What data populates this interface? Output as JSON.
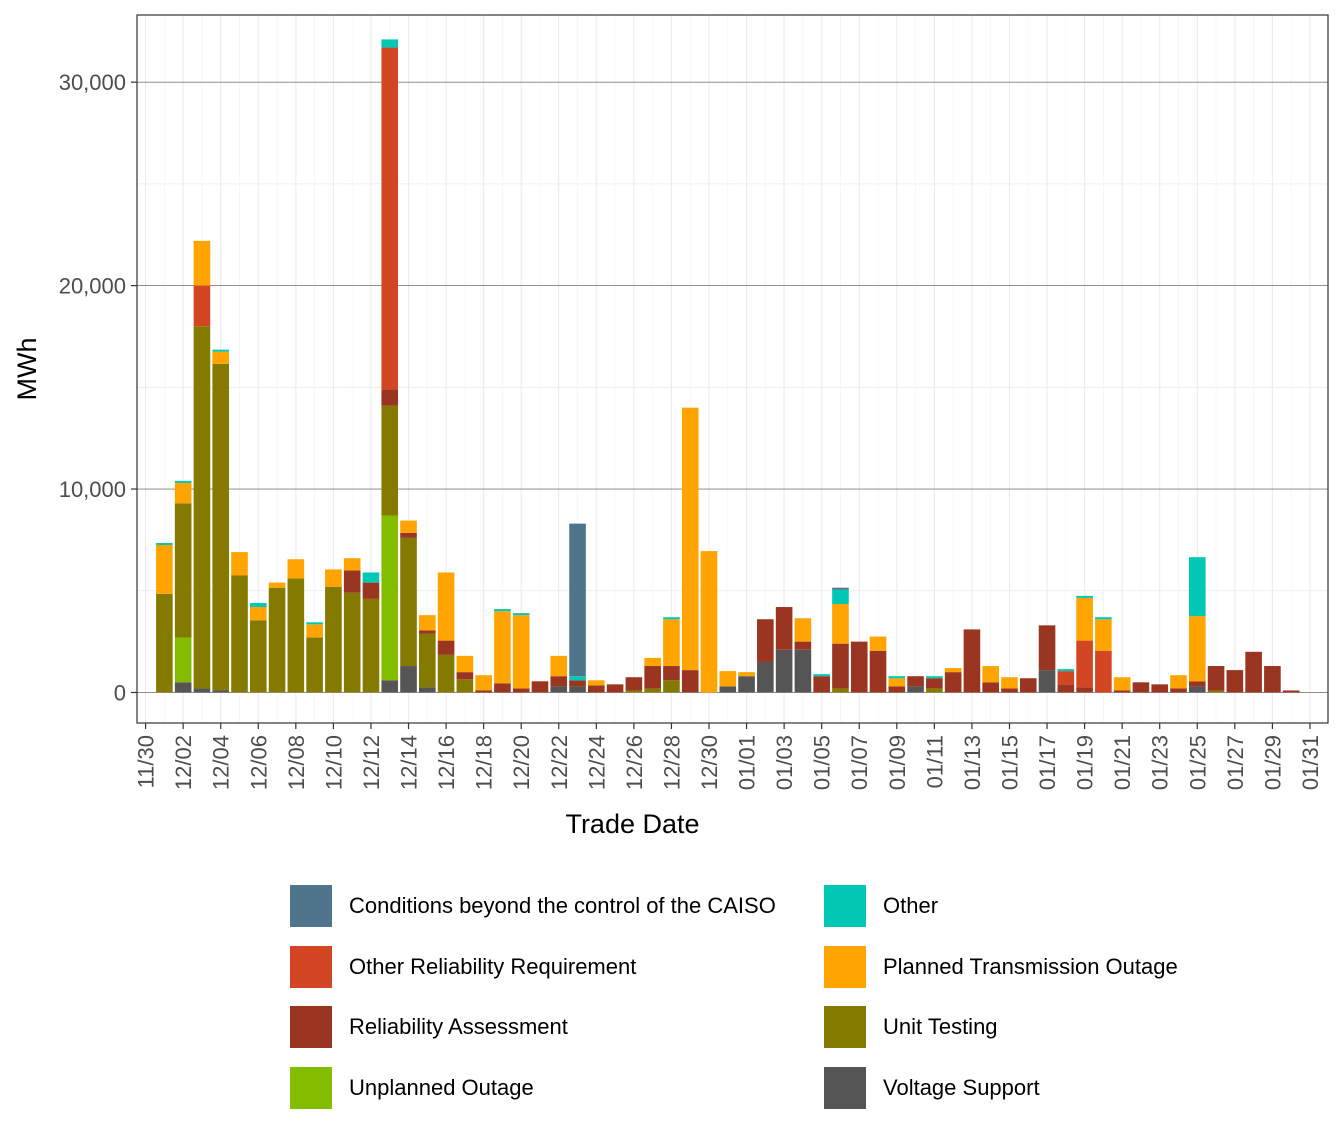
{
  "chart_data": {
    "type": "bar",
    "stacked": true,
    "xlabel": "Trade Date",
    "ylabel": "MWh",
    "ylim": [
      -1500,
      33300
    ],
    "y_ticks": [
      0,
      10000,
      20000,
      30000
    ],
    "y_tick_labels": [
      "0",
      "10,000",
      "20,000",
      "30,000"
    ],
    "x_tick_labels": [
      "11/30",
      "12/02",
      "12/04",
      "12/06",
      "12/08",
      "12/10",
      "12/12",
      "12/14",
      "12/16",
      "12/18",
      "12/20",
      "12/22",
      "12/24",
      "12/26",
      "12/28",
      "12/30",
      "01/01",
      "01/03",
      "01/05",
      "01/07",
      "01/09",
      "01/11",
      "01/13",
      "01/15",
      "01/17",
      "01/19",
      "01/21",
      "01/23",
      "01/25",
      "01/27",
      "01/29",
      "01/31"
    ],
    "grid": true,
    "legend_position": "bottom",
    "categories": [
      "12/01",
      "12/02",
      "12/03",
      "12/04",
      "12/05",
      "12/06",
      "12/07",
      "12/08",
      "12/09",
      "12/10",
      "12/11",
      "12/12",
      "12/13",
      "12/14",
      "12/15",
      "12/16",
      "12/17",
      "12/18",
      "12/19",
      "12/20",
      "12/21",
      "12/22",
      "12/23",
      "12/24",
      "12/25",
      "12/26",
      "12/27",
      "12/28",
      "12/29",
      "12/30",
      "12/31",
      "01/01",
      "01/02",
      "01/03",
      "01/04",
      "01/05",
      "01/06",
      "01/07",
      "01/08",
      "01/09",
      "01/10",
      "01/11",
      "01/12",
      "01/13",
      "01/14",
      "01/15",
      "01/16",
      "01/17",
      "01/18",
      "01/19",
      "01/20",
      "01/21",
      "01/22",
      "01/23",
      "01/24",
      "01/25",
      "01/26",
      "01/27",
      "01/28",
      "01/29",
      "01/30"
    ],
    "series": [
      {
        "name": "Voltage Support",
        "color": "#555555",
        "values": [
          0,
          500,
          200,
          100,
          0,
          0,
          0,
          0,
          0,
          0,
          0,
          0,
          600,
          1300,
          250,
          0,
          0,
          0,
          0,
          0,
          0,
          300,
          300,
          0,
          0,
          0,
          0,
          0,
          0,
          0,
          300,
          800,
          1500,
          2100,
          2100,
          0,
          0,
          0,
          0,
          0,
          300,
          0,
          0,
          0,
          0,
          0,
          0,
          1100,
          0,
          0,
          0,
          0,
          0,
          0,
          0,
          300,
          0,
          0,
          0,
          0,
          0
        ]
      },
      {
        "name": "Unplanned Outage",
        "color": "#84bd00",
        "values": [
          0,
          2200,
          0,
          0,
          0,
          0,
          0,
          0,
          0,
          0,
          0,
          0,
          8100,
          0,
          0,
          0,
          0,
          0,
          0,
          0,
          0,
          0,
          0,
          0,
          0,
          0,
          0,
          0,
          0,
          0,
          0,
          0,
          0,
          0,
          0,
          0,
          0,
          0,
          0,
          0,
          0,
          0,
          0,
          0,
          0,
          0,
          0,
          0,
          0,
          0,
          0,
          0,
          0,
          0,
          0,
          0,
          0,
          0,
          0,
          0,
          0
        ]
      },
      {
        "name": "Unit Testing",
        "color": "#847a00",
        "values": [
          4850,
          6600,
          17800,
          16050,
          5750,
          3550,
          5150,
          5600,
          2700,
          5200,
          4900,
          4600,
          5400,
          6300,
          2650,
          1850,
          650,
          0,
          0,
          0,
          0,
          0,
          0,
          0,
          0,
          100,
          200,
          600,
          0,
          0,
          0,
          0,
          0,
          0,
          0,
          0,
          200,
          0,
          0,
          0,
          0,
          200,
          0,
          0,
          0,
          0,
          0,
          0,
          0,
          0,
          0,
          0,
          0,
          0,
          0,
          0,
          100,
          0,
          0,
          0,
          0
        ]
      },
      {
        "name": "Reliability Assessment",
        "color": "#993520",
        "values": [
          0,
          0,
          0,
          0,
          0,
          0,
          0,
          0,
          0,
          0,
          1100,
          800,
          800,
          250,
          150,
          700,
          350,
          100,
          450,
          200,
          550,
          500,
          300,
          350,
          400,
          650,
          1100,
          700,
          1100,
          0,
          0,
          0,
          2100,
          2100,
          400,
          800,
          2200,
          2500,
          2050,
          300,
          500,
          500,
          1000,
          3100,
          500,
          200,
          700,
          2200,
          400,
          250,
          0,
          100,
          500,
          400,
          200,
          250,
          1200,
          1100,
          2000,
          1300,
          100
        ]
      },
      {
        "name": "Other Reliability Requirement",
        "color": "#d24623",
        "values": [
          0,
          0,
          2000,
          0,
          0,
          0,
          0,
          0,
          0,
          0,
          0,
          0,
          16800,
          0,
          0,
          0,
          0,
          0,
          0,
          0,
          0,
          0,
          0,
          0,
          0,
          0,
          0,
          0,
          0,
          0,
          0,
          0,
          0,
          0,
          0,
          0,
          0,
          0,
          0,
          0,
          0,
          0,
          0,
          0,
          0,
          0,
          0,
          0,
          650,
          2300,
          2050,
          0,
          0,
          0,
          0,
          0,
          0,
          0,
          0,
          0,
          0
        ]
      },
      {
        "name": "Planned Transmission Outage",
        "color": "#ffa400",
        "values": [
          2400,
          1000,
          2200,
          600,
          1150,
          650,
          250,
          950,
          650,
          850,
          600,
          0,
          0,
          600,
          750,
          3350,
          800,
          750,
          3550,
          3600,
          0,
          1000,
          0,
          250,
          0,
          0,
          400,
          2300,
          12900,
          6950,
          750,
          200,
          0,
          0,
          1150,
          0,
          1950,
          0,
          700,
          400,
          0,
          0,
          200,
          0,
          800,
          550,
          0,
          0,
          0,
          2100,
          1550,
          650,
          0,
          0,
          650,
          3200,
          0,
          0,
          0,
          0,
          0
        ]
      },
      {
        "name": "Other",
        "color": "#00c8b4",
        "values": [
          100,
          100,
          0,
          100,
          0,
          200,
          0,
          0,
          100,
          0,
          0,
          500,
          400,
          0,
          0,
          0,
          0,
          0,
          100,
          100,
          0,
          0,
          200,
          0,
          0,
          0,
          0,
          100,
          0,
          0,
          0,
          0,
          0,
          0,
          0,
          100,
          700,
          0,
          0,
          100,
          0,
          100,
          0,
          0,
          0,
          0,
          0,
          0,
          100,
          100,
          100,
          0,
          0,
          0,
          0,
          2900,
          0,
          0,
          0,
          0,
          0
        ]
      },
      {
        "name": "Conditions beyond the control of the CAISO",
        "color": "#4e758b",
        "values": [
          0,
          0,
          0,
          0,
          0,
          0,
          0,
          0,
          0,
          0,
          0,
          0,
          0,
          0,
          0,
          0,
          0,
          0,
          0,
          0,
          0,
          0,
          7500,
          0,
          0,
          0,
          0,
          0,
          0,
          0,
          0,
          0,
          0,
          0,
          0,
          0,
          100,
          0,
          0,
          0,
          0,
          0,
          0,
          0,
          0,
          0,
          0,
          0,
          0,
          0,
          0,
          0,
          0,
          0,
          0,
          0,
          0,
          0,
          0,
          0,
          0
        ]
      }
    ],
    "legend_order": [
      "Conditions beyond the control of the CAISO",
      "Other",
      "Other Reliability Requirement",
      "Planned Transmission Outage",
      "Reliability Assessment",
      "Unit Testing",
      "Unplanned Outage",
      "Voltage Support"
    ]
  }
}
